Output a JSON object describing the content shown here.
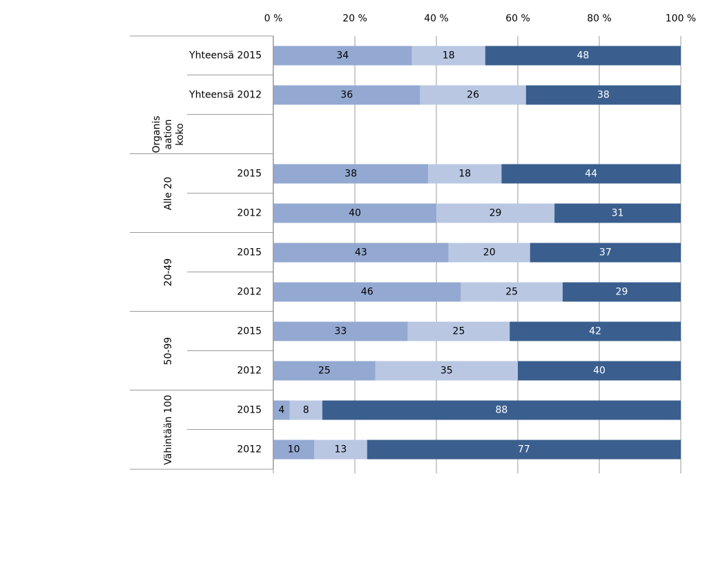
{
  "chart_data": {
    "type": "stacked-bar-horizontal",
    "categories": [
      "Yhteensä 2015",
      "Yhteensä 2012",
      null,
      "2015",
      "2012",
      "2015",
      "2012",
      "2015",
      "2012",
      "2015",
      "2012"
    ],
    "groups": [
      [
        "Organis",
        "aation",
        "koko"
      ],
      [
        "Alle 20"
      ],
      [
        "20-49"
      ],
      [
        "50-99"
      ],
      [
        "Vähintään 100"
      ]
    ],
    "series": [
      {
        "color": "#94a9d1",
        "values": [
          34,
          36,
          null,
          38,
          40,
          43,
          46,
          33,
          25,
          4,
          10
        ]
      },
      {
        "color": "#b9c7e3",
        "values": [
          18,
          26,
          null,
          18,
          29,
          20,
          25,
          25,
          35,
          8,
          13
        ]
      },
      {
        "color": "#3a5f8e",
        "values": [
          48,
          38,
          null,
          44,
          31,
          37,
          29,
          42,
          40,
          88,
          77
        ]
      }
    ],
    "xlim": [
      0,
      100
    ],
    "xticks": [
      {
        "value": 0,
        "label": "0 %"
      },
      {
        "value": 20,
        "label": "20 %"
      },
      {
        "value": 40,
        "label": "40 %"
      },
      {
        "value": 60,
        "label": "60 %"
      },
      {
        "value": 80,
        "label": "80 %"
      },
      {
        "value": 100,
        "label": "100 %"
      }
    ],
    "grid": true
  }
}
